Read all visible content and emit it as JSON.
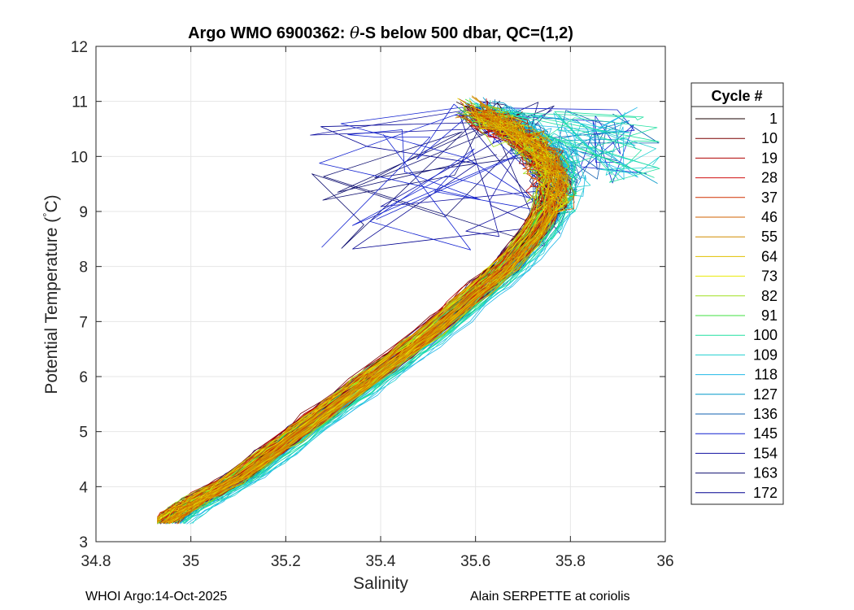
{
  "chart_data": {
    "type": "line",
    "title_parts": {
      "prefix": "Argo WMO 6900362: ",
      "theta": "θ",
      "suffix": "-S below 500 dbar,  QC=(1,2)"
    },
    "xlabel": "Salinity",
    "ylabel": "Potential Temperature (",
    "ylabel_unit_deg": "°",
    "ylabel_unit_c": "C)",
    "xlim": [
      34.8,
      36
    ],
    "ylim": [
      3,
      12
    ],
    "xticks": [
      "34.8",
      "35",
      "35.2",
      "35.4",
      "35.6",
      "35.8",
      "36"
    ],
    "yticks": [
      "3",
      "4",
      "5",
      "6",
      "7",
      "8",
      "9",
      "10",
      "11",
      "12"
    ],
    "grid": true,
    "legend": {
      "title": "Cycle #",
      "placement": "right",
      "entries": [
        "1",
        "10",
        "19",
        "28",
        "37",
        "46",
        "55",
        "64",
        "73",
        "82",
        "91",
        "100",
        "109",
        "118",
        "127",
        "136",
        "145",
        "154",
        "163",
        "172"
      ],
      "colors": [
        "#1a0000",
        "#7a0000",
        "#b00000",
        "#d01010",
        "#d03000",
        "#d06000",
        "#d08c00",
        "#e0c000",
        "#e8e800",
        "#a0e020",
        "#40e040",
        "#20e0a0",
        "#20d0d0",
        "#20b8e8",
        "#0098c8",
        "#1060b0",
        "#1020d0",
        "#1010a0",
        "#101070",
        "#000090"
      ]
    },
    "profile_shape": {
      "salinity": [
        34.94,
        34.98,
        35.03,
        35.1,
        35.2,
        35.3,
        35.4,
        35.5,
        35.6,
        35.66,
        35.72,
        35.76,
        35.76,
        35.72,
        35.66,
        35.6
      ],
      "theta": [
        3.35,
        3.6,
        3.85,
        4.2,
        4.85,
        5.5,
        6.15,
        6.8,
        7.55,
        8.0,
        8.6,
        9.2,
        9.75,
        10.2,
        10.55,
        10.85
      ]
    },
    "cycles_drawn": 172
  },
  "footer": {
    "left": "WHOI Argo:14-Oct-2025",
    "right": "Alain SERPETTE at coriolis"
  }
}
